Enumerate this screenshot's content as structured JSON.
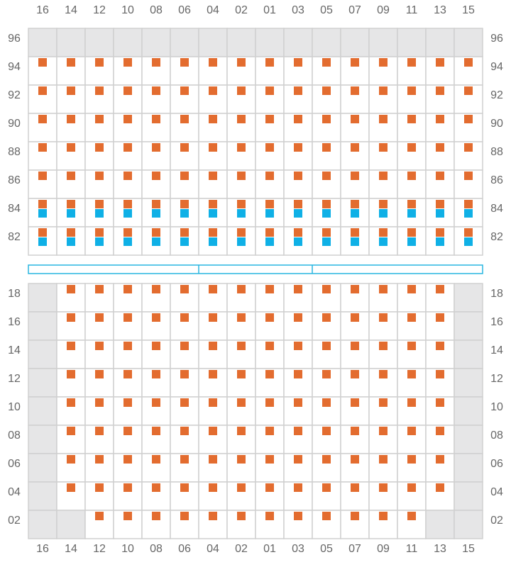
{
  "columns": [
    "16",
    "14",
    "12",
    "10",
    "08",
    "06",
    "04",
    "02",
    "01",
    "03",
    "05",
    "07",
    "09",
    "11",
    "13",
    "15"
  ],
  "top_rows": [
    "96",
    "94",
    "92",
    "90",
    "88",
    "86",
    "84",
    "82"
  ],
  "bottom_rows": [
    "18",
    "16",
    "14",
    "12",
    "10",
    "08",
    "06",
    "04",
    "02"
  ]
}
